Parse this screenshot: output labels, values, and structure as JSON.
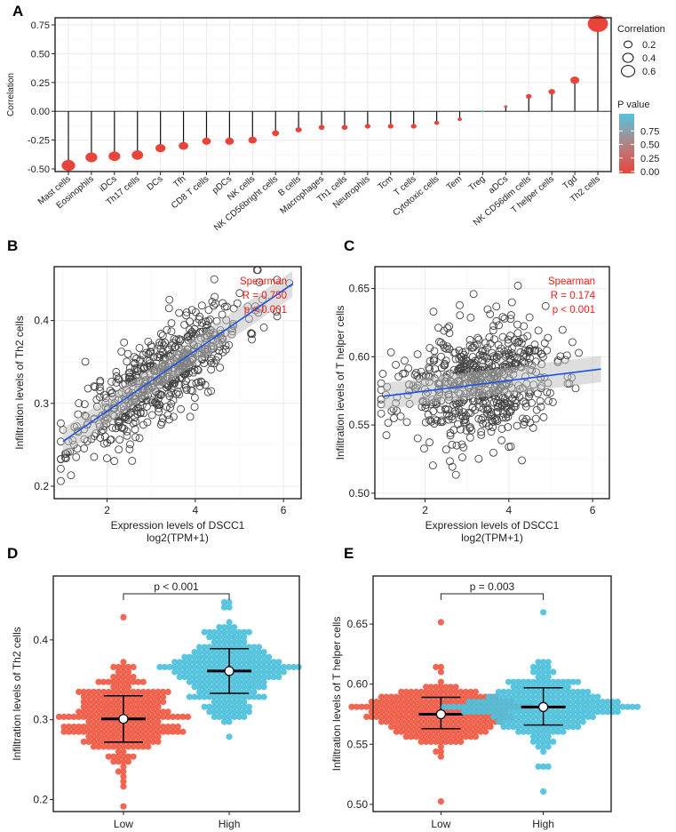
{
  "chart_data": [
    {
      "panel": "A",
      "type": "lollipop",
      "ylabel": "Correlation",
      "ylim": [
        -0.5,
        0.75
      ],
      "yticks": [
        "0.75",
        "0.50",
        "0.25",
        "0.00",
        "-0.25",
        "-0.50"
      ],
      "ytick_values": [
        0.75,
        0.5,
        0.25,
        0,
        -0.25,
        -0.5
      ],
      "categories": [
        "Mast cells",
        "Eosinophils",
        "iDCs",
        "Th17 cells",
        "DCs",
        "Tfh",
        "CD8 T cells",
        "pDCs",
        "NK cells",
        "NK CD56bright cells",
        "B cells",
        "Macrophages",
        "Th1 cells",
        "Neutrophils",
        "Tcm",
        "T cells",
        "Cytotoxic cells",
        "Tem",
        "Treg",
        "aDCs",
        "NK CD56dim cells",
        "T helper cells",
        "Tgd",
        "Th2 cells"
      ],
      "values": [
        -0.47,
        -0.4,
        -0.39,
        -0.38,
        -0.32,
        -0.3,
        -0.26,
        -0.26,
        -0.25,
        -0.19,
        -0.16,
        -0.14,
        -0.14,
        -0.13,
        -0.13,
        -0.13,
        -0.1,
        -0.07,
        0.0,
        0.04,
        0.13,
        0.17,
        0.27,
        0.76
      ],
      "pvalues": [
        0,
        0,
        0,
        0,
        0,
        0,
        0,
        0,
        0,
        0,
        0,
        0,
        0,
        0,
        0,
        0,
        0,
        0.01,
        0.95,
        0.25,
        0,
        0,
        0,
        0
      ],
      "legend_size": {
        "title": "Correlation",
        "labels": [
          "0.2",
          "0.4",
          "0.6"
        ],
        "values": [
          0.2,
          0.4,
          0.6
        ]
      },
      "legend_color": {
        "title": "P value",
        "labels": [
          "0.75",
          "0.50",
          "0.25",
          "0.00"
        ],
        "values": [
          0.75,
          0.5,
          0.25,
          0
        ],
        "low_color": "#e8443a",
        "high_color": "#55c4dc"
      },
      "legend_placement": "right"
    },
    {
      "panel": "B",
      "type": "scatter",
      "xlabel": "Expression levels of DSCC1",
      "xlabel2": "log2(TPM+1)",
      "ylabel": "Infiltration levels of Th2 cells",
      "xlim": [
        0.8,
        6.4
      ],
      "ylim": [
        0.185,
        0.465
      ],
      "xticks": [
        "2",
        "4",
        "6"
      ],
      "xtick_values": [
        2,
        4,
        6
      ],
      "yticks": [
        "0.2",
        "0.3",
        "0.4"
      ],
      "ytick_values": [
        0.2,
        0.3,
        0.4
      ],
      "fit": {
        "x0": 1.0,
        "y0": 0.254,
        "x1": 6.2,
        "y1": 0.444
      },
      "annotation": [
        "Spearman",
        "R = 0.750",
        "p < 0.001"
      ],
      "n_points": 600,
      "rho": 0.75,
      "x_mean": 3.2,
      "x_sd": 0.95,
      "y_sd": 0.045,
      "seed": 11
    },
    {
      "panel": "C",
      "type": "scatter",
      "xlabel": "Expression levels of DSCC1",
      "xlabel2": "log2(TPM+1)",
      "ylabel": "Infiltration levels of T helper cells",
      "xlim": [
        0.8,
        6.4
      ],
      "ylim": [
        0.496,
        0.666
      ],
      "xticks": [
        "2",
        "4",
        "6"
      ],
      "xtick_values": [
        2,
        4,
        6
      ],
      "yticks": [
        "0.50",
        "0.55",
        "0.60",
        "0.65"
      ],
      "ytick_values": [
        0.5,
        0.55,
        0.6,
        0.65
      ],
      "fit": {
        "x0": 1.0,
        "y0": 0.571,
        "x1": 6.2,
        "y1": 0.591
      },
      "annotation": [
        "Spearman",
        "R = 0.174",
        "p < 0.001"
      ],
      "n_points": 600,
      "rho": 0.174,
      "x_mean": 3.2,
      "x_sd": 0.95,
      "y_sd": 0.022,
      "seed": 23
    },
    {
      "panel": "D",
      "type": "beeswarm",
      "ylabel": "Infiltration levels of Th2 cells",
      "categories": [
        "Low",
        "High"
      ],
      "ylim": [
        0.185,
        0.48
      ],
      "yticks": [
        "0.2",
        "0.3",
        "0.4"
      ],
      "ytick_values": [
        0.2,
        0.3,
        0.4
      ],
      "series": [
        {
          "name": "Low",
          "color": "#ef5a44",
          "mean": 0.301,
          "sd_low": 0.272,
          "sd_high": 0.33,
          "min": 0.193,
          "max": 0.43,
          "n": 270
        },
        {
          "name": "High",
          "color": "#4fc1dc",
          "mean": 0.361,
          "sd_low": 0.333,
          "sd_high": 0.389,
          "min": 0.281,
          "max": 0.45,
          "n": 270
        }
      ],
      "pvalue_label": "p < 0.001"
    },
    {
      "panel": "E",
      "type": "beeswarm",
      "ylabel": "Infiltration levels of T helper cells",
      "categories": [
        "Low",
        "High"
      ],
      "ylim": [
        0.494,
        0.69
      ],
      "yticks": [
        "0.50",
        "0.55",
        "0.60",
        "0.65"
      ],
      "ytick_values": [
        0.5,
        0.55,
        0.6,
        0.65
      ],
      "series": [
        {
          "name": "Low",
          "color": "#ef5a44",
          "mean": 0.575,
          "sd_low": 0.563,
          "sd_high": 0.589,
          "min": 0.502,
          "max": 0.651,
          "n": 270
        },
        {
          "name": "High",
          "color": "#4fc1dc",
          "mean": 0.581,
          "sd_low": 0.566,
          "sd_high": 0.597,
          "min": 0.511,
          "max": 0.661,
          "n": 270
        }
      ],
      "pvalue_label": "p = 0.003"
    }
  ],
  "panel_labels": [
    "A",
    "B",
    "C",
    "D",
    "E"
  ]
}
